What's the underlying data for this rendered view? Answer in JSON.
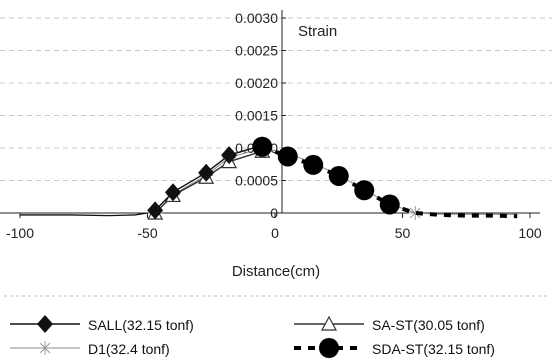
{
  "chart_data": {
    "type": "line",
    "xlabel": "Distance(cm)",
    "ylabel": "Strain",
    "xlim": [
      -100,
      100
    ],
    "ylim": [
      0,
      0.003
    ],
    "x_ticks": [
      -100,
      -50,
      0,
      50,
      100
    ],
    "y_ticks": [
      0,
      0.0005,
      0.001,
      0.0015,
      0.002,
      0.0025,
      0.003
    ],
    "x_tick_labels": [
      "-100",
      "-50",
      "0",
      "50",
      "100"
    ],
    "y_tick_labels": [
      "0",
      "0.0005",
      "0.0010",
      "0.0015",
      "0.0020",
      "0.0025",
      "0.0030"
    ],
    "grid": true,
    "legend_position": "bottom",
    "series": [
      {
        "name": "SALL(32.15 tonf)",
        "marker": "diamond",
        "line": "solid",
        "color": "#111111",
        "x": [
          -47,
          -40,
          -27,
          -18,
          -5
        ],
        "y": [
          4e-05,
          0.00032,
          0.00062,
          0.00089,
          0.00104
        ]
      },
      {
        "name": "SA-ST(30.05 tonf)",
        "marker": "open-triangle",
        "line": "solid",
        "color": "#333333",
        "x": [
          -47,
          -40,
          -27,
          -18,
          -5
        ],
        "y": [
          0.0,
          0.00027,
          0.00055,
          0.00079,
          0.00095
        ]
      },
      {
        "name": "D1(32.4 tonf)",
        "marker": "asterisk",
        "line": "thin",
        "color": "#888888",
        "x": [
          -47,
          -40,
          -27,
          -18,
          -5,
          5,
          15,
          25,
          35,
          45,
          55,
          65,
          75,
          85,
          95
        ],
        "y": [
          0.0,
          0.00028,
          0.00058,
          0.00085,
          0.001,
          0.00092,
          0.00077,
          0.00058,
          0.00036,
          0.00014,
          0.0,
          -2e-05,
          -2e-05,
          -2e-05,
          -2e-05
        ]
      },
      {
        "name": "SDA-ST(32.15 tonf)",
        "marker": "filled-circle",
        "line": "dashed",
        "color": "#000000",
        "x": [
          -5,
          5,
          15,
          25,
          35,
          45,
          55,
          65,
          75,
          85,
          95
        ],
        "y": [
          0.00102,
          0.00087,
          0.00074,
          0.00057,
          0.00035,
          0.00013,
          0.0,
          -3e-05,
          -4e-05,
          -4e-05,
          -5e-05
        ]
      }
    ],
    "baseline_curve": {
      "x": [
        -100,
        -80,
        -65,
        -55,
        -50
      ],
      "y": [
        -3e-05,
        -3e-05,
        -4e-05,
        -3e-05,
        0.0
      ]
    }
  }
}
